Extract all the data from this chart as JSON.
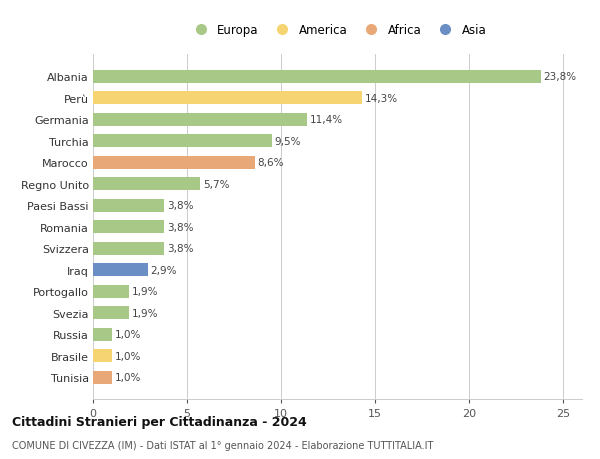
{
  "categories": [
    "Albania",
    "Perù",
    "Germania",
    "Turchia",
    "Marocco",
    "Regno Unito",
    "Paesi Bassi",
    "Romania",
    "Svizzera",
    "Iraq",
    "Portogallo",
    "Svezia",
    "Russia",
    "Brasile",
    "Tunisia"
  ],
  "values": [
    23.8,
    14.3,
    11.4,
    9.5,
    8.6,
    5.7,
    3.8,
    3.8,
    3.8,
    2.9,
    1.9,
    1.9,
    1.0,
    1.0,
    1.0
  ],
  "labels": [
    "23,8%",
    "14,3%",
    "11,4%",
    "9,5%",
    "8,6%",
    "5,7%",
    "3,8%",
    "3,8%",
    "3,8%",
    "2,9%",
    "1,9%",
    "1,9%",
    "1,0%",
    "1,0%",
    "1,0%"
  ],
  "continents": [
    "Europa",
    "America",
    "Europa",
    "Europa",
    "Africa",
    "Europa",
    "Europa",
    "Europa",
    "Europa",
    "Asia",
    "Europa",
    "Europa",
    "Europa",
    "America",
    "Africa"
  ],
  "colors": {
    "Europa": "#a8c887",
    "America": "#f7d472",
    "Africa": "#e8a878",
    "Asia": "#6b8ec4"
  },
  "legend_order": [
    "Europa",
    "America",
    "Africa",
    "Asia"
  ],
  "xlim": [
    0,
    26
  ],
  "xticks": [
    0,
    5,
    10,
    15,
    20,
    25
  ],
  "title": "Cittadini Stranieri per Cittadinanza - 2024",
  "subtitle": "COMUNE DI CIVEZZA (IM) - Dati ISTAT al 1° gennaio 2024 - Elaborazione TUTTITALIA.IT",
  "background_color": "#ffffff",
  "grid_color": "#cccccc"
}
